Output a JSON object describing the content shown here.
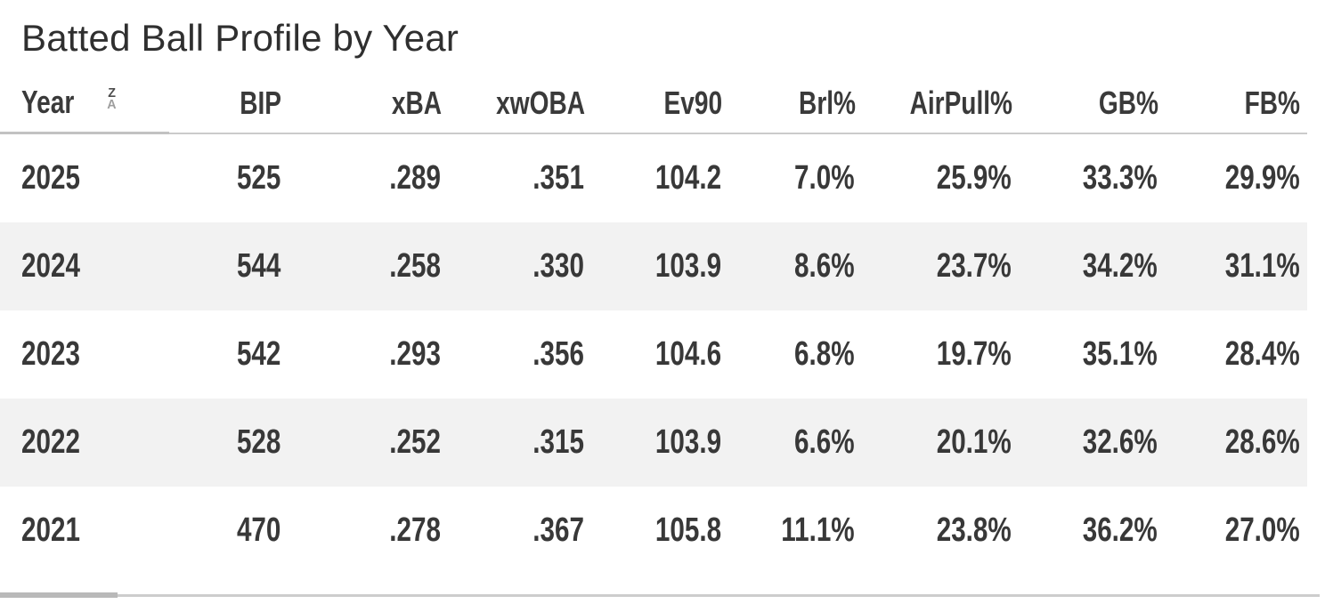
{
  "title": "Batted Ball Profile by Year",
  "sort_icon": {
    "top": "Z",
    "bottom": "A"
  },
  "table": {
    "columns": [
      {
        "key": "year",
        "label": "Year",
        "align": "left",
        "sort": "desc"
      },
      {
        "key": "bip",
        "label": "BIP",
        "align": "right"
      },
      {
        "key": "xba",
        "label": "xBA",
        "align": "right"
      },
      {
        "key": "xwoba",
        "label": "xwOBA",
        "align": "right"
      },
      {
        "key": "ev90",
        "label": "Ev90",
        "align": "right"
      },
      {
        "key": "brl",
        "label": "Brl%",
        "align": "right"
      },
      {
        "key": "airpull",
        "label": "AirPull%",
        "align": "right"
      },
      {
        "key": "gb",
        "label": "GB%",
        "align": "right"
      },
      {
        "key": "fb",
        "label": "FB%",
        "align": "right"
      }
    ]
  },
  "chart_data": {
    "type": "table",
    "title": "Batted Ball Profile by Year",
    "columns": [
      "Year",
      "BIP",
      "xBA",
      "xwOBA",
      "Ev90",
      "Brl%",
      "AirPull%",
      "GB%",
      "FB%"
    ],
    "rows": [
      [
        "2025",
        "525",
        ".289",
        ".351",
        "104.2",
        "7.0%",
        "25.9%",
        "33.3%",
        "29.9%"
      ],
      [
        "2024",
        "544",
        ".258",
        ".330",
        "103.9",
        "8.6%",
        "23.7%",
        "34.2%",
        "31.1%"
      ],
      [
        "2023",
        "542",
        ".293",
        ".356",
        "104.6",
        "6.8%",
        "19.7%",
        "35.1%",
        "28.4%"
      ],
      [
        "2022",
        "528",
        ".252",
        ".315",
        "103.9",
        "6.6%",
        "20.1%",
        "32.6%",
        "28.6%"
      ],
      [
        "2021",
        "470",
        ".278",
        ".367",
        "105.8",
        "11.1%",
        "23.8%",
        "36.2%",
        "27.0%"
      ]
    ],
    "sort": {
      "column": "Year",
      "direction": "desc"
    },
    "layout": {
      "striped_rows": true,
      "stripe_rows_years": [
        "2024",
        "2022"
      ]
    }
  },
  "colors": {
    "text": "#333333",
    "row_stripe": "#f2f2f2",
    "header_border": "#cbcbcb",
    "scrollbar_track": "#cdcdcd",
    "scrollbar_thumb": "#b9b9b9",
    "sort_icon_top": "#4d4d4d",
    "sort_icon_bottom": "#9e9e9e"
  }
}
